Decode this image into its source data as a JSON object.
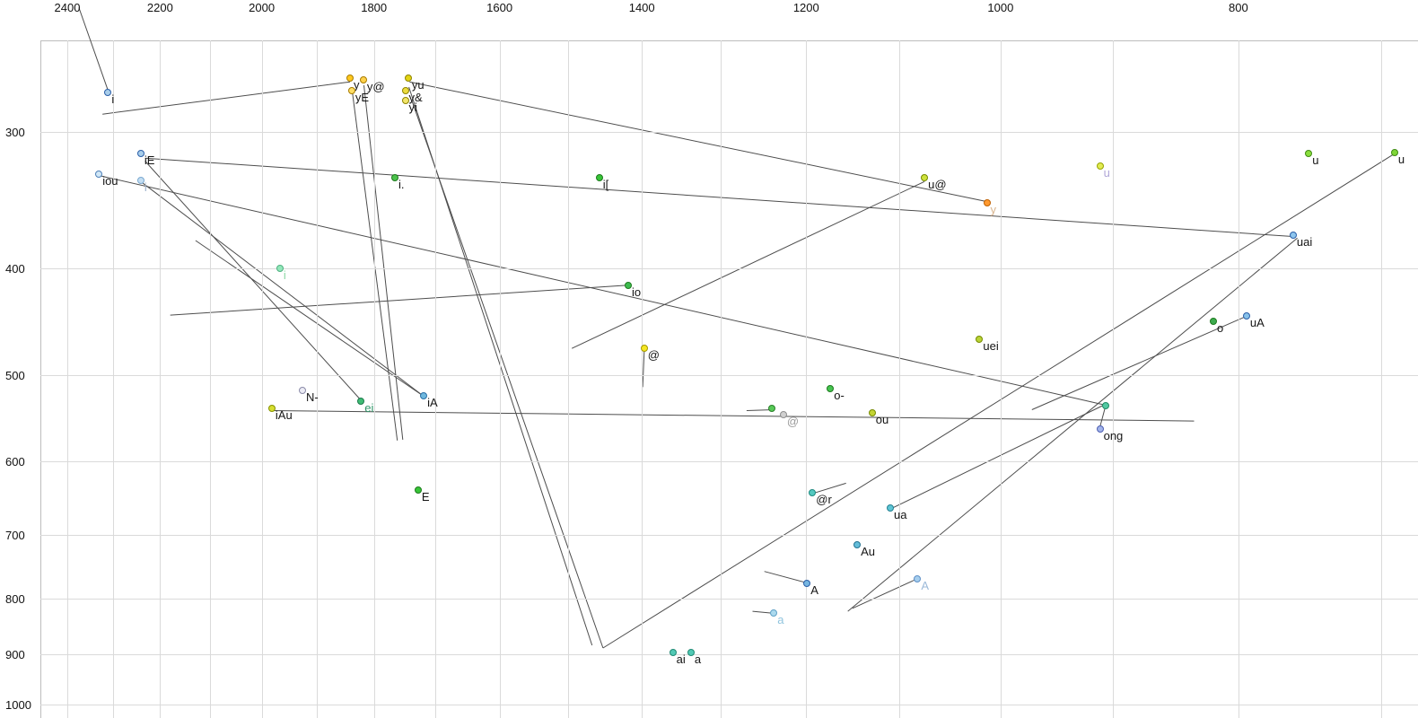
{
  "style": {
    "background": "#ffffff",
    "grid_color": "#dadada",
    "axis_color": "#bdbdbd",
    "line_color": "#4d4d4d",
    "tick_color": "#101010",
    "label_color": "#151515"
  },
  "chart_data": {
    "type": "scatter",
    "title": "",
    "description": "Vowel formant chart (F2 horizontal reversed log scale, F1 vertical log scale) with diphthong trajectory lines",
    "x_axis": {
      "scale": "log",
      "reversed": true,
      "ticks": [
        2400,
        2200,
        2000,
        1800,
        1600,
        1400,
        1200,
        1000,
        800
      ],
      "gridlines": [
        2400,
        2300,
        2200,
        2100,
        2000,
        1900,
        1800,
        1700,
        1600,
        1500,
        1400,
        1300,
        1200,
        1100,
        1000,
        900,
        800,
        700
      ],
      "range": [
        2556,
        676
      ]
    },
    "y_axis": {
      "scale": "log",
      "ticks": [
        300,
        400,
        500,
        600,
        700,
        800,
        900,
        1000
      ],
      "gridlines": [
        300,
        400,
        500,
        600,
        700,
        800,
        900,
        1000
      ],
      "range": [
        247,
        1029
      ]
    },
    "points": [
      {
        "l": "i",
        "f2": 2310,
        "f1": 276,
        "fill": "#a8cdea",
        "stroke": "#2b5fa8"
      },
      {
        "l": "iE",
        "f2": 2240,
        "f1": 314,
        "fill": "#a8cdea",
        "stroke": "#2b5fa8"
      },
      {
        "l": "iou",
        "f2": 2330,
        "f1": 328,
        "fill": "#d2e8f7",
        "stroke": "#4d7fb8"
      },
      {
        "l": "i",
        "f2": 2240,
        "f1": 332,
        "fill": "#c4def2",
        "stroke": "#7aa8d0",
        "lc": "#9fb3cc"
      },
      {
        "l": "y",
        "f2": 1841,
        "f1": 268,
        "fill": "#ffc81e",
        "stroke": "#a87c00"
      },
      {
        "l": "y@",
        "f2": 1818,
        "f1": 269,
        "fill": "#ffd24d",
        "stroke": "#a87c00"
      },
      {
        "l": "yE",
        "f2": 1838,
        "f1": 275,
        "fill": "#ffdf66",
        "stroke": "#a87c00"
      },
      {
        "l": "yu",
        "f2": 1743,
        "f1": 268,
        "fill": "#e3d414",
        "stroke": "#8f8400"
      },
      {
        "l": "y&",
        "f2": 1748,
        "f1": 275,
        "fill": "#ecdc3f",
        "stroke": "#8f8400"
      },
      {
        "l": "yi",
        "f2": 1748,
        "f1": 281,
        "fill": "#f2e56a",
        "stroke": "#8f8400"
      },
      {
        "l": "i.",
        "f2": 1765,
        "f1": 330,
        "fill": "#4cc24c",
        "stroke": "#1d7a1d"
      },
      {
        "l": "i[",
        "f2": 1457,
        "f1": 330,
        "fill": "#37c437",
        "stroke": "#1d7a1d"
      },
      {
        "l": "u@",
        "f2": 1074,
        "f1": 330,
        "fill": "#cfe23c",
        "stroke": "#768a00"
      },
      {
        "l": "y",
        "f2": 1013,
        "f1": 348,
        "fill": "#ff9a30",
        "stroke": "#bf6000",
        "lc": "#d8b48e"
      },
      {
        "l": "u",
        "f2": 911,
        "f1": 322,
        "fill": "#e2ec52",
        "stroke": "#96a400",
        "lc": "#b0a6d8"
      },
      {
        "l": "u",
        "f2": 749,
        "f1": 314,
        "fill": "#8ade3c",
        "stroke": "#3f8a14"
      },
      {
        "l": "u",
        "f2": 691,
        "f1": 313,
        "fill": "#7ed636",
        "stroke": "#3f8a14"
      },
      {
        "l": "uai",
        "f2": 760,
        "f1": 373,
        "fill": "#8fc6ee",
        "stroke": "#2b5fa8"
      },
      {
        "l": "i",
        "f2": 1966,
        "f1": 400,
        "fill": "#92e8ba",
        "stroke": "#4fb080",
        "lc": "#8ed8a6"
      },
      {
        "l": "io",
        "f2": 1418,
        "f1": 414,
        "fill": "#3dbb4f",
        "stroke": "#1d7a1d"
      },
      {
        "l": "@",
        "f2": 1397,
        "f1": 473,
        "fill": "#f6e722",
        "stroke": "#a39800"
      },
      {
        "l": "uei",
        "f2": 1020,
        "f1": 464,
        "fill": "#b9d435",
        "stroke": "#768a00"
      },
      {
        "l": "o",
        "f2": 819,
        "f1": 447,
        "fill": "#3dab4f",
        "stroke": "#1d7a1d"
      },
      {
        "l": "uA",
        "f2": 794,
        "f1": 442,
        "fill": "#88c2ea",
        "stroke": "#2b5fa8"
      },
      {
        "l": "N-",
        "f2": 1925,
        "f1": 517,
        "fill": "#ececf5",
        "stroke": "#8a8aa8"
      },
      {
        "l": "iA",
        "f2": 1718,
        "f1": 522,
        "fill": "#6fb8de",
        "stroke": "#296fa6"
      },
      {
        "l": "ei",
        "f2": 1822,
        "f1": 528,
        "fill": "#3fbc74",
        "stroke": "#1d7a4c",
        "lc": "#2f9668"
      },
      {
        "l": "iAu",
        "f2": 1981,
        "f1": 536,
        "fill": "#d6de30",
        "stroke": "#869200"
      },
      {
        "l": "o-",
        "f2": 1173,
        "f1": 515,
        "fill": "#46c451",
        "stroke": "#1d7a1d"
      },
      {
        "l": "@",
        "f2": 1226,
        "f1": 544,
        "fill": "#d0d0d0",
        "stroke": "#8f8f8f",
        "lc": "#9a9a9a"
      },
      {
        "l": "",
        "f2": 1239,
        "f1": 536,
        "fill": "#57c957",
        "stroke": "#2a7f2a"
      },
      {
        "l": "ou",
        "f2": 1128,
        "f1": 542,
        "fill": "#c3d433",
        "stroke": "#768a00"
      },
      {
        "l": "ong",
        "f2": 911,
        "f1": 560,
        "fill": "#a2b4ea",
        "stroke": "#4d5fb2"
      },
      {
        "l": "",
        "f2": 906,
        "f1": 533,
        "fill": "#52c9a2",
        "stroke": "#1f8a66"
      },
      {
        "l": "E",
        "f2": 1727,
        "f1": 637,
        "fill": "#37c437",
        "stroke": "#1d7a1d"
      },
      {
        "l": "@r",
        "f2": 1193,
        "f1": 641,
        "fill": "#54c9c0",
        "stroke": "#1f8a80"
      },
      {
        "l": "ua",
        "f2": 1109,
        "f1": 662,
        "fill": "#5ec5d5",
        "stroke": "#238091"
      },
      {
        "l": "Au",
        "f2": 1144,
        "f1": 715,
        "fill": "#64bdd9",
        "stroke": "#237291"
      },
      {
        "l": "A",
        "f2": 1199,
        "f1": 775,
        "fill": "#76b5e0",
        "stroke": "#2b5fa8"
      },
      {
        "l": "a",
        "f2": 1237,
        "f1": 825,
        "fill": "#abd9ee",
        "stroke": "#5ea0c6",
        "lc": "#90c4de"
      },
      {
        "l": "A",
        "f2": 1081,
        "f1": 768,
        "fill": "#a6ceee",
        "stroke": "#5e90c6",
        "lc": "#9cbad9"
      },
      {
        "l": "ai",
        "f2": 1360,
        "f1": 896,
        "fill": "#52c9b5",
        "stroke": "#1f8a74"
      },
      {
        "l": "a",
        "f2": 1337,
        "f1": 896,
        "fill": "#52c9b5",
        "stroke": "#1f8a74"
      }
    ],
    "segments": [
      [
        2374,
        231,
        2310,
        275
      ],
      [
        2322,
        289,
        1841,
        270
      ],
      [
        1838,
        273,
        1761,
        574
      ],
      [
        1817,
        272,
        1752,
        573
      ],
      [
        1742,
        273,
        1467,
        883
      ],
      [
        1737,
        281,
        1452,
        888
      ],
      [
        1741,
        270,
        1015,
        347
      ],
      [
        2231,
        317,
        758,
        374
      ],
      [
        2231,
        319,
        1820,
        529
      ],
      [
        2240,
        333,
        1718,
        523
      ],
      [
        1718,
        523,
        2128,
        377
      ],
      [
        2327,
        329,
        906,
        533
      ],
      [
        1981,
        539,
        834,
        551
      ],
      [
        2179,
        441,
        1418,
        414
      ],
      [
        1397,
        476,
        1399,
        513
      ],
      [
        691,
        314,
        1452,
        888
      ],
      [
        757,
        375,
        1154,
        822
      ],
      [
        794,
        442,
        971,
        538
      ],
      [
        908,
        533,
        1109,
        663
      ],
      [
        906,
        533,
        911,
        558
      ],
      [
        1269,
        539,
        1237,
        538
      ],
      [
        1248,
        756,
        1200,
        774
      ],
      [
        1262,
        822,
        1241,
        825
      ],
      [
        1083,
        769,
        1149,
        817
      ],
      [
        1074,
        333,
        1495,
        473
      ],
      [
        1191,
        641,
        1156,
        628
      ]
    ]
  }
}
